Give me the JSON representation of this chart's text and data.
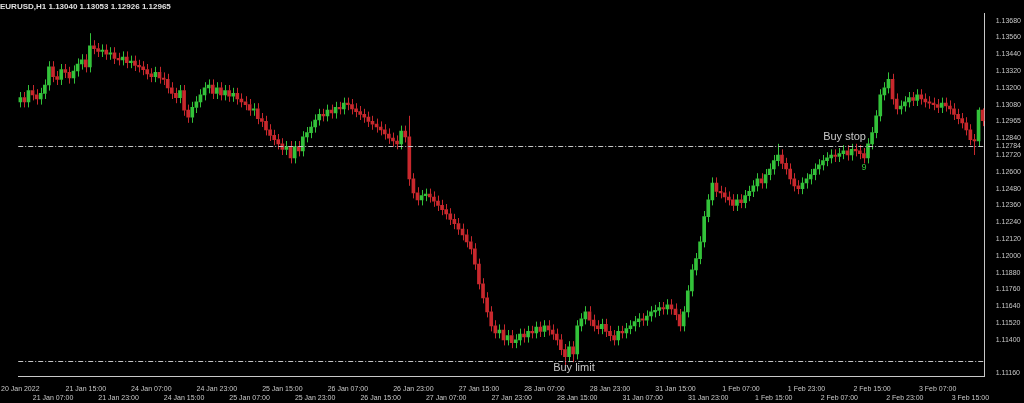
{
  "chart_data": {
    "type": "candlestick",
    "title": "EURUSD,H1 1.13040 1.13053 1.12926 1.12965",
    "categories": [
      "20 Jan 2022",
      null,
      null,
      null,
      null,
      null,
      null,
      null,
      "21 Jan 07:00",
      null,
      null,
      null,
      null,
      null,
      null,
      null,
      "21 Jan 15:00",
      null,
      null,
      null,
      null,
      null,
      null,
      null,
      "21 Jan 23:00",
      null,
      null,
      null,
      null,
      null,
      null,
      null,
      "24 Jan 07:00",
      null,
      null,
      null,
      null,
      null,
      null,
      null,
      "24 Jan 15:00",
      null,
      null,
      null,
      null,
      null,
      null,
      null,
      "24 Jan 23:00",
      null,
      null,
      null,
      null,
      null,
      null,
      null,
      "25 Jan 07:00",
      null,
      null,
      null,
      null,
      null,
      null,
      null,
      "25 Jan 15:00",
      null,
      null,
      null,
      null,
      null,
      null,
      null,
      "25 Jan 23:00",
      null,
      null,
      null,
      null,
      null,
      null,
      null,
      "26 Jan 07:00",
      null,
      null,
      null,
      null,
      null,
      null,
      null,
      "26 Jan 15:00",
      null,
      null,
      null,
      null,
      null,
      null,
      null,
      "26 Jan 23:00",
      null,
      null,
      null,
      null,
      null,
      null,
      null,
      "27 Jan 07:00",
      null,
      null,
      null,
      null,
      null,
      null,
      null,
      "27 Jan 15:00",
      null,
      null,
      null,
      null,
      null,
      null,
      null,
      "27 Jan 23:00",
      null,
      null,
      null,
      null,
      null,
      null,
      null,
      "28 Jan 07:00",
      null,
      null,
      null,
      null,
      null,
      null,
      null,
      "28 Jan 15:00",
      null,
      null,
      null,
      null,
      null,
      null,
      null,
      "28 Jan 23:00",
      null,
      null,
      null,
      null,
      null,
      null,
      null,
      "31 Jan 07:00",
      null,
      null,
      null,
      null,
      null,
      null,
      null,
      "31 Jan 15:00",
      null,
      null,
      null,
      null,
      null,
      null,
      null,
      "31 Jan 23:00",
      null,
      null,
      null,
      null,
      null,
      null,
      null,
      "1 Feb 07:00",
      null,
      null,
      null,
      null,
      null,
      null,
      null,
      "1 Feb 15:00",
      null,
      null,
      null,
      null,
      null,
      null,
      null,
      "1 Feb 23:00",
      null,
      null,
      null,
      null,
      null,
      null,
      null,
      "2 Feb 07:00",
      null,
      null,
      null,
      null,
      null,
      null,
      null,
      "2 Feb 15:00",
      null,
      null,
      null,
      null,
      null,
      null,
      null,
      "2 Feb 23:00",
      null,
      null,
      null,
      null,
      null,
      null,
      null,
      "3 Feb 07:00",
      null,
      null,
      null,
      null,
      null,
      null,
      null,
      "3 Feb 15:00",
      null,
      null,
      null
    ],
    "ohlc": [
      [
        1.131,
        1.1317,
        1.1306,
        1.1313
      ],
      [
        1.1313,
        1.1317,
        1.1306,
        1.131
      ],
      [
        1.131,
        1.1322,
        1.1306,
        1.1318
      ],
      [
        1.1318,
        1.1322,
        1.1311,
        1.1315
      ],
      [
        1.1315,
        1.1319,
        1.1308,
        1.1312
      ],
      [
        1.1312,
        1.132,
        1.1308,
        1.1316
      ],
      [
        1.1316,
        1.1326,
        1.1312,
        1.1322
      ],
      [
        1.1322,
        1.1339,
        1.1318,
        1.1335
      ],
      [
        1.1335,
        1.1339,
        1.1324,
        1.1328
      ],
      [
        1.1328,
        1.1332,
        1.1322,
        1.1326
      ],
      [
        1.1326,
        1.1337,
        1.1322,
        1.1333
      ],
      [
        1.1333,
        1.1337,
        1.1327,
        1.1331
      ],
      [
        1.1331,
        1.1335,
        1.1323,
        1.1327
      ],
      [
        1.1327,
        1.1336,
        1.1323,
        1.1332
      ],
      [
        1.1332,
        1.1341,
        1.1328,
        1.1337
      ],
      [
        1.1337,
        1.1344,
        1.1333,
        1.134
      ],
      [
        1.134,
        1.1344,
        1.1331,
        1.1335
      ],
      [
        1.1335,
        1.1359,
        1.1331,
        1.135
      ],
      [
        1.135,
        1.1354,
        1.1344,
        1.1348
      ],
      [
        1.1348,
        1.1352,
        1.1342,
        1.1346
      ],
      [
        1.1346,
        1.1351,
        1.1342,
        1.1347
      ],
      [
        1.1347,
        1.1351,
        1.134,
        1.1344
      ],
      [
        1.1344,
        1.1349,
        1.134,
        1.1345
      ],
      [
        1.1345,
        1.1349,
        1.1337,
        1.1341
      ],
      [
        1.1341,
        1.1345,
        1.1336,
        1.134
      ],
      [
        1.134,
        1.1346,
        1.1336,
        1.1342
      ],
      [
        1.1342,
        1.1346,
        1.1334,
        1.1338
      ],
      [
        1.1338,
        1.1343,
        1.1334,
        1.1339
      ],
      [
        1.1339,
        1.1343,
        1.1332,
        1.1336
      ],
      [
        1.1336,
        1.134,
        1.1331,
        1.1335
      ],
      [
        1.1335,
        1.1339,
        1.1329,
        1.1333
      ],
      [
        1.1333,
        1.1337,
        1.1326,
        1.133
      ],
      [
        1.133,
        1.1334,
        1.1324,
        1.1328
      ],
      [
        1.1328,
        1.1335,
        1.1324,
        1.1331
      ],
      [
        1.1331,
        1.1335,
        1.1323,
        1.1327
      ],
      [
        1.1327,
        1.1331,
        1.1322,
        1.1326
      ],
      [
        1.1326,
        1.133,
        1.1316,
        1.132
      ],
      [
        1.132,
        1.1324,
        1.1312,
        1.1316
      ],
      [
        1.1316,
        1.132,
        1.1309,
        1.1313
      ],
      [
        1.1313,
        1.1322,
        1.1309,
        1.1318
      ],
      [
        1.1318,
        1.1322,
        1.13,
        1.1304
      ],
      [
        1.1304,
        1.1308,
        1.1295,
        1.1299
      ],
      [
        1.1299,
        1.131,
        1.1295,
        1.1306
      ],
      [
        1.1306,
        1.1314,
        1.1302,
        1.131
      ],
      [
        1.131,
        1.1319,
        1.1306,
        1.1315
      ],
      [
        1.1315,
        1.1324,
        1.1311,
        1.132
      ],
      [
        1.132,
        1.1326,
        1.1316,
        1.1322
      ],
      [
        1.1322,
        1.1326,
        1.1312,
        1.1316
      ],
      [
        1.1316,
        1.1324,
        1.1312,
        1.132
      ],
      [
        1.132,
        1.1324,
        1.1311,
        1.1315
      ],
      [
        1.1315,
        1.1322,
        1.1311,
        1.1318
      ],
      [
        1.1318,
        1.1322,
        1.131,
        1.1314
      ],
      [
        1.1314,
        1.132,
        1.131,
        1.1316
      ],
      [
        1.1316,
        1.132,
        1.1308,
        1.1312
      ],
      [
        1.1312,
        1.1316,
        1.1306,
        1.131
      ],
      [
        1.131,
        1.1314,
        1.1304,
        1.1308
      ],
      [
        1.1308,
        1.1312,
        1.13,
        1.1304
      ],
      [
        1.1304,
        1.1309,
        1.13,
        1.1305
      ],
      [
        1.1305,
        1.1309,
        1.1294,
        1.1298
      ],
      [
        1.1298,
        1.1302,
        1.1292,
        1.1296
      ],
      [
        1.1296,
        1.13,
        1.1286,
        1.129
      ],
      [
        1.129,
        1.1294,
        1.1282,
        1.1286
      ],
      [
        1.1286,
        1.129,
        1.1279,
        1.1283
      ],
      [
        1.1283,
        1.1287,
        1.1276,
        1.128
      ],
      [
        1.128,
        1.1284,
        1.1272,
        1.1276
      ],
      [
        1.1276,
        1.1282,
        1.1272,
        1.1278
      ],
      [
        1.1278,
        1.1282,
        1.1266,
        1.127
      ],
      [
        1.127,
        1.1282,
        1.1266,
        1.1278
      ],
      [
        1.1278,
        1.1282,
        1.1271,
        1.1275
      ],
      [
        1.1275,
        1.1289,
        1.1271,
        1.1285
      ],
      [
        1.1285,
        1.1292,
        1.1281,
        1.1288
      ],
      [
        1.1288,
        1.1296,
        1.1284,
        1.1292
      ],
      [
        1.1292,
        1.1301,
        1.1288,
        1.1297
      ],
      [
        1.1297,
        1.1305,
        1.1293,
        1.1301
      ],
      [
        1.1301,
        1.1305,
        1.1296,
        1.13
      ],
      [
        1.13,
        1.1308,
        1.1296,
        1.1304
      ],
      [
        1.1304,
        1.1308,
        1.1298,
        1.1302
      ],
      [
        1.1302,
        1.131,
        1.1298,
        1.1306
      ],
      [
        1.1306,
        1.131,
        1.1301,
        1.1305
      ],
      [
        1.1305,
        1.1313,
        1.1301,
        1.1309
      ],
      [
        1.1309,
        1.1313,
        1.1304,
        1.1308
      ],
      [
        1.1308,
        1.1312,
        1.1301,
        1.1305
      ],
      [
        1.1305,
        1.1309,
        1.1299,
        1.1303
      ],
      [
        1.1303,
        1.1307,
        1.1297,
        1.1301
      ],
      [
        1.1301,
        1.1305,
        1.1295,
        1.1299
      ],
      [
        1.1299,
        1.1303,
        1.1292,
        1.1296
      ],
      [
        1.1296,
        1.13,
        1.129,
        1.1294
      ],
      [
        1.1294,
        1.1298,
        1.1288,
        1.1292
      ],
      [
        1.1292,
        1.1296,
        1.1286,
        1.129
      ],
      [
        1.129,
        1.1294,
        1.1283,
        1.1287
      ],
      [
        1.1287,
        1.1291,
        1.128,
        1.1284
      ],
      [
        1.1284,
        1.1288,
        1.1278,
        1.1282
      ],
      [
        1.1282,
        1.1286,
        1.1276,
        1.128
      ],
      [
        1.128,
        1.1293,
        1.1276,
        1.1289
      ],
      [
        1.1289,
        1.1293,
        1.1281,
        1.1285
      ],
      [
        1.1285,
        1.13,
        1.125,
        1.1255
      ],
      [
        1.1255,
        1.1259,
        1.1241,
        1.1245
      ],
      [
        1.1245,
        1.1249,
        1.1236,
        1.124
      ],
      [
        1.124,
        1.1247,
        1.1236,
        1.1243
      ],
      [
        1.1243,
        1.1248,
        1.1239,
        1.1244
      ],
      [
        1.1244,
        1.1248,
        1.1238,
        1.1242
      ],
      [
        1.1242,
        1.1246,
        1.1235,
        1.1239
      ],
      [
        1.1239,
        1.1243,
        1.1232,
        1.1236
      ],
      [
        1.1236,
        1.124,
        1.1229,
        1.1233
      ],
      [
        1.1233,
        1.1237,
        1.1226,
        1.123
      ],
      [
        1.123,
        1.1234,
        1.1222,
        1.1226
      ],
      [
        1.1226,
        1.123,
        1.1219,
        1.1223
      ],
      [
        1.1223,
        1.1227,
        1.1215,
        1.1219
      ],
      [
        1.1219,
        1.1223,
        1.1211,
        1.1215
      ],
      [
        1.1215,
        1.1219,
        1.1206,
        1.121
      ],
      [
        1.121,
        1.1214,
        1.1201,
        1.1205
      ],
      [
        1.1205,
        1.1209,
        1.119,
        1.1194
      ],
      [
        1.1194,
        1.1198,
        1.1176,
        1.118
      ],
      [
        1.118,
        1.1184,
        1.1166,
        1.117
      ],
      [
        1.117,
        1.1174,
        1.1156,
        1.116
      ],
      [
        1.116,
        1.1164,
        1.1146,
        1.115
      ],
      [
        1.115,
        1.1154,
        1.1141,
        1.1145
      ],
      [
        1.1145,
        1.1151,
        1.1141,
        1.1147
      ],
      [
        1.1147,
        1.1151,
        1.1136,
        1.114
      ],
      [
        1.114,
        1.1147,
        1.1136,
        1.1143
      ],
      [
        1.1143,
        1.1147,
        1.1134,
        1.1138
      ],
      [
        1.1138,
        1.1144,
        1.1134,
        1.114
      ],
      [
        1.114,
        1.1148,
        1.1136,
        1.1144
      ],
      [
        1.1144,
        1.1148,
        1.1138,
        1.1142
      ],
      [
        1.1142,
        1.115,
        1.1138,
        1.1146
      ],
      [
        1.1146,
        1.115,
        1.1141,
        1.1145
      ],
      [
        1.1145,
        1.1153,
        1.1141,
        1.1149
      ],
      [
        1.1149,
        1.1153,
        1.1142,
        1.1146
      ],
      [
        1.1146,
        1.1154,
        1.1142,
        1.115
      ],
      [
        1.115,
        1.1154,
        1.1143,
        1.1147
      ],
      [
        1.1147,
        1.1151,
        1.114,
        1.1144
      ],
      [
        1.1144,
        1.1148,
        1.1136,
        1.114
      ],
      [
        1.114,
        1.1144,
        1.1129,
        1.1133
      ],
      [
        1.1133,
        1.1137,
        1.1122,
        1.1128
      ],
      [
        1.1128,
        1.1139,
        1.1124,
        1.1135
      ],
      [
        1.1135,
        1.1139,
        1.1124,
        1.113
      ],
      [
        1.113,
        1.1154,
        1.1126,
        1.115
      ],
      [
        1.115,
        1.1159,
        1.1146,
        1.1155
      ],
      [
        1.1155,
        1.1164,
        1.1151,
        1.116
      ],
      [
        1.116,
        1.1164,
        1.115,
        1.1154
      ],
      [
        1.1154,
        1.1158,
        1.1146,
        1.115
      ],
      [
        1.115,
        1.1154,
        1.1144,
        1.1148
      ],
      [
        1.1148,
        1.1155,
        1.1144,
        1.1151
      ],
      [
        1.1151,
        1.1155,
        1.1142,
        1.1146
      ],
      [
        1.1146,
        1.115,
        1.1139,
        1.1143
      ],
      [
        1.1143,
        1.1147,
        1.1136,
        1.114
      ],
      [
        1.114,
        1.115,
        1.1136,
        1.1146
      ],
      [
        1.1146,
        1.115,
        1.1141,
        1.1145
      ],
      [
        1.1145,
        1.1152,
        1.1141,
        1.1148
      ],
      [
        1.1148,
        1.1154,
        1.1144,
        1.115
      ],
      [
        1.115,
        1.1157,
        1.1146,
        1.1153
      ],
      [
        1.1153,
        1.1159,
        1.1149,
        1.1155
      ],
      [
        1.1155,
        1.1159,
        1.115,
        1.1154
      ],
      [
        1.1154,
        1.1161,
        1.115,
        1.1157
      ],
      [
        1.1157,
        1.1164,
        1.1153,
        1.116
      ],
      [
        1.116,
        1.1165,
        1.1156,
        1.1161
      ],
      [
        1.1161,
        1.1167,
        1.1157,
        1.1163
      ],
      [
        1.1163,
        1.1167,
        1.1158,
        1.1162
      ],
      [
        1.1162,
        1.1169,
        1.1158,
        1.1165
      ],
      [
        1.1165,
        1.1169,
        1.1158,
        1.1162
      ],
      [
        1.1162,
        1.1166,
        1.1154,
        1.1158
      ],
      [
        1.1158,
        1.1162,
        1.1146,
        1.115
      ],
      [
        1.115,
        1.1164,
        1.1146,
        1.116
      ],
      [
        1.116,
        1.1179,
        1.1156,
        1.1175
      ],
      [
        1.1175,
        1.1194,
        1.1171,
        1.119
      ],
      [
        1.119,
        1.1202,
        1.1186,
        1.1198
      ],
      [
        1.1198,
        1.1214,
        1.1194,
        1.121
      ],
      [
        1.121,
        1.1232,
        1.1206,
        1.1228
      ],
      [
        1.1228,
        1.1244,
        1.1224,
        1.124
      ],
      [
        1.124,
        1.1256,
        1.1236,
        1.1252
      ],
      [
        1.1252,
        1.1256,
        1.1242,
        1.1246
      ],
      [
        1.1246,
        1.125,
        1.1241,
        1.1245
      ],
      [
        1.1245,
        1.1249,
        1.1238,
        1.1242
      ],
      [
        1.1242,
        1.1246,
        1.1236,
        1.124
      ],
      [
        1.124,
        1.1244,
        1.1232,
        1.1236
      ],
      [
        1.1236,
        1.1244,
        1.1232,
        1.124
      ],
      [
        1.124,
        1.1244,
        1.1234,
        1.1238
      ],
      [
        1.1238,
        1.1247,
        1.1234,
        1.1243
      ],
      [
        1.1243,
        1.125,
        1.1239,
        1.1246
      ],
      [
        1.1246,
        1.1254,
        1.1242,
        1.125
      ],
      [
        1.125,
        1.1259,
        1.1246,
        1.1255
      ],
      [
        1.1255,
        1.1259,
        1.1248,
        1.1252
      ],
      [
        1.1252,
        1.1262,
        1.1248,
        1.1258
      ],
      [
        1.1258,
        1.1266,
        1.1254,
        1.1262
      ],
      [
        1.1262,
        1.1272,
        1.1258,
        1.1268
      ],
      [
        1.1268,
        1.128,
        1.1264,
        1.1272
      ],
      [
        1.1272,
        1.1276,
        1.1262,
        1.1266
      ],
      [
        1.1266,
        1.127,
        1.1258,
        1.1262
      ],
      [
        1.1262,
        1.1266,
        1.1251,
        1.1255
      ],
      [
        1.1255,
        1.1259,
        1.1246,
        1.125
      ],
      [
        1.125,
        1.1254,
        1.1244,
        1.1248
      ],
      [
        1.1248,
        1.1256,
        1.1244,
        1.1252
      ],
      [
        1.1252,
        1.1259,
        1.1248,
        1.1255
      ],
      [
        1.1255,
        1.1262,
        1.1251,
        1.1258
      ],
      [
        1.1258,
        1.1266,
        1.1254,
        1.1262
      ],
      [
        1.1262,
        1.1269,
        1.1258,
        1.1265
      ],
      [
        1.1265,
        1.1272,
        1.1261,
        1.1268
      ],
      [
        1.1268,
        1.1274,
        1.1264,
        1.127
      ],
      [
        1.127,
        1.1276,
        1.1266,
        1.1272
      ],
      [
        1.1272,
        1.1276,
        1.1267,
        1.1271
      ],
      [
        1.1271,
        1.1277,
        1.1267,
        1.1273
      ],
      [
        1.1273,
        1.1279,
        1.1269,
        1.1275
      ],
      [
        1.1275,
        1.1279,
        1.1268,
        1.1272
      ],
      [
        1.1272,
        1.128,
        1.1268,
        1.1276
      ],
      [
        1.1276,
        1.128,
        1.1271,
        1.1275
      ],
      [
        1.1275,
        1.1279,
        1.1269,
        1.1273
      ],
      [
        1.1273,
        1.1277,
        1.1266,
        1.127
      ],
      [
        1.127,
        1.1284,
        1.1266,
        1.128
      ],
      [
        1.128,
        1.1292,
        1.1276,
        1.1288
      ],
      [
        1.1288,
        1.1304,
        1.1284,
        1.13
      ],
      [
        1.13,
        1.1319,
        1.1296,
        1.1315
      ],
      [
        1.1315,
        1.1324,
        1.1311,
        1.132
      ],
      [
        1.132,
        1.1331,
        1.1316,
        1.1326
      ],
      [
        1.1326,
        1.133,
        1.1308,
        1.1312
      ],
      [
        1.1312,
        1.1316,
        1.1301,
        1.1305
      ],
      [
        1.1305,
        1.1311,
        1.1301,
        1.1307
      ],
      [
        1.1307,
        1.1314,
        1.1303,
        1.131
      ],
      [
        1.131,
        1.1317,
        1.1306,
        1.1313
      ],
      [
        1.1313,
        1.1317,
        1.1307,
        1.1311
      ],
      [
        1.1311,
        1.1319,
        1.1307,
        1.1315
      ],
      [
        1.1315,
        1.1319,
        1.1308,
        1.1312
      ],
      [
        1.1312,
        1.1316,
        1.1306,
        1.131
      ],
      [
        1.131,
        1.1314,
        1.1305,
        1.1309
      ],
      [
        1.1309,
        1.1313,
        1.1304,
        1.1308
      ],
      [
        1.1308,
        1.1312,
        1.1302,
        1.1306
      ],
      [
        1.1306,
        1.1313,
        1.1302,
        1.1309
      ],
      [
        1.1309,
        1.1313,
        1.1303,
        1.1307
      ],
      [
        1.1307,
        1.1311,
        1.1301,
        1.1305
      ],
      [
        1.1305,
        1.1309,
        1.1297,
        1.1301
      ],
      [
        1.1301,
        1.1305,
        1.1294,
        1.1298
      ],
      [
        1.1298,
        1.1302,
        1.1291,
        1.1295
      ],
      [
        1.1295,
        1.1299,
        1.1286,
        1.129
      ],
      [
        1.129,
        1.1294,
        1.1279,
        1.1283
      ],
      [
        1.1283,
        1.1287,
        1.1272,
        1.1282
      ],
      [
        1.1282,
        1.1306,
        1.1278,
        1.1304
      ],
      [
        1.1304,
        1.13053,
        1.12926,
        1.12965
      ]
    ],
    "ylim": [
      1.1114,
      1.1373
    ],
    "yticks": [
      {
        "value": 1.1368,
        "label": "1.13680"
      },
      {
        "value": 1.1356,
        "label": "1.13560"
      },
      {
        "value": 1.1344,
        "label": "1.13440"
      },
      {
        "value": 1.1332,
        "label": "1.13320"
      },
      {
        "value": 1.132,
        "label": "1.13200"
      },
      {
        "value": 1.1308,
        "label": "1.13080"
      },
      1.12965,
      {
        "value": 1.1284,
        "label": "1.12840"
      },
      1.12784,
      {
        "value": 1.1272,
        "label": "1.12720"
      },
      {
        "value": 1.126,
        "label": "1.12600"
      },
      {
        "value": 1.1248,
        "label": "1.12480"
      },
      {
        "value": 1.1236,
        "label": "1.12360"
      },
      {
        "value": 1.1224,
        "label": "1.12240"
      },
      {
        "value": 1.1212,
        "label": "1.12120"
      },
      {
        "value": 1.12,
        "label": "1.12000"
      },
      {
        "value": 1.1188,
        "label": "1.11880"
      },
      {
        "value": 1.1176,
        "label": "1.11760"
      },
      {
        "value": 1.1164,
        "label": "1.11640"
      },
      {
        "value": 1.1152,
        "label": "1.11520"
      },
      {
        "value": 1.114,
        "label": "1.11400"
      },
      {
        "value": 1.1116,
        "label": "1.11160"
      }
    ],
    "ref_lines": [
      {
        "axis": "y",
        "value": 1.12784,
        "label": "Buy stop",
        "color": "#c8c8c8",
        "line_style": "dashed"
      },
      {
        "axis": "y",
        "value": 1.1125,
        "label": "Buy limit",
        "color": "#c8c8c8",
        "line_style": "dashed"
      }
    ],
    "annotations": [
      {
        "text": "9",
        "y": 1.1263
      }
    ]
  }
}
